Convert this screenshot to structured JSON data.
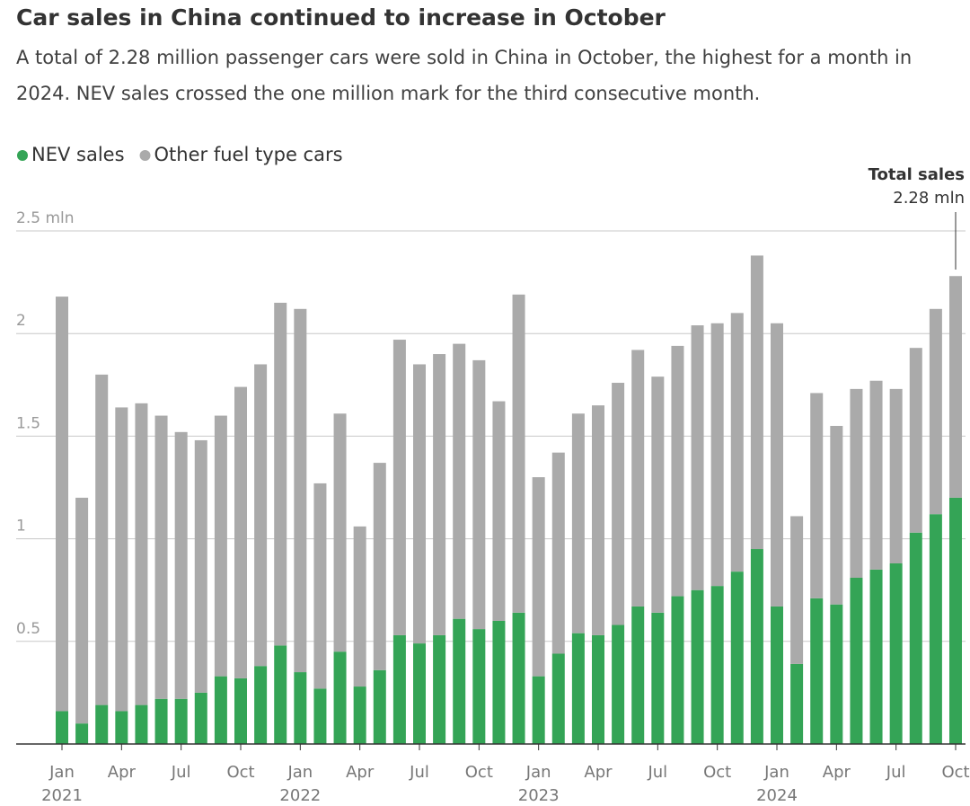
{
  "chart_data": {
    "type": "stacked_bar",
    "title": "Car sales in China continued to increase in October",
    "subtitle": "A total of 2.28 million passenger cars were sold in China in October, the highest for a month in 2024. NEV sales crossed the one million mark for the third consecutive month.",
    "categories": [
      "Jan",
      null,
      null,
      "Apr",
      null,
      null,
      "Jul",
      null,
      null,
      "Oct",
      null,
      null,
      "Jan",
      null,
      null,
      "Apr",
      null,
      null,
      "Jul",
      null,
      null,
      "Oct",
      null,
      null,
      "Jan",
      null,
      null,
      "Apr",
      null,
      null,
      "Jul",
      null,
      null,
      "Oct",
      null,
      null,
      "Jan",
      null,
      null,
      "Apr",
      null,
      null,
      "Jul",
      null,
      null,
      "Oct"
    ],
    "years": [
      "2021",
      "2022",
      "2023",
      "2024"
    ],
    "series": [
      {
        "name": "NEV sales",
        "color": "#34a456",
        "values": [
          0.16,
          0.1,
          0.19,
          0.16,
          0.19,
          0.22,
          0.22,
          0.25,
          0.33,
          0.32,
          0.38,
          0.48,
          0.35,
          0.27,
          0.45,
          0.28,
          0.36,
          0.53,
          0.49,
          0.53,
          0.61,
          0.56,
          0.6,
          0.64,
          0.33,
          0.44,
          0.54,
          0.53,
          0.58,
          0.67,
          0.64,
          0.72,
          0.75,
          0.77,
          0.84,
          0.95,
          0.67,
          0.39,
          0.71,
          0.68,
          0.81,
          0.85,
          0.88,
          1.03,
          1.12,
          1.2
        ]
      },
      {
        "name": "Other fuel type cars",
        "color": "#aaaaaa",
        "values": [
          2.02,
          1.1,
          1.61,
          1.48,
          1.47,
          1.38,
          1.3,
          1.23,
          1.27,
          1.42,
          1.47,
          1.67,
          1.77,
          1.0,
          1.16,
          0.78,
          1.01,
          1.44,
          1.36,
          1.37,
          1.34,
          1.31,
          1.07,
          1.55,
          0.97,
          0.98,
          1.07,
          1.12,
          1.18,
          1.25,
          1.15,
          1.22,
          1.29,
          1.28,
          1.26,
          1.43,
          1.38,
          0.72,
          1.0,
          0.87,
          0.92,
          0.92,
          0.85,
          0.9,
          1.0,
          1.08
        ]
      }
    ],
    "ylim": [
      0,
      2.5
    ],
    "yticks": [
      0.5,
      1,
      1.5,
      2,
      {
        "value": 2.5,
        "label": "2.5 mln"
      }
    ],
    "grid": true,
    "annotation": {
      "title": "Total sales",
      "text": "2.28 mln"
    }
  }
}
